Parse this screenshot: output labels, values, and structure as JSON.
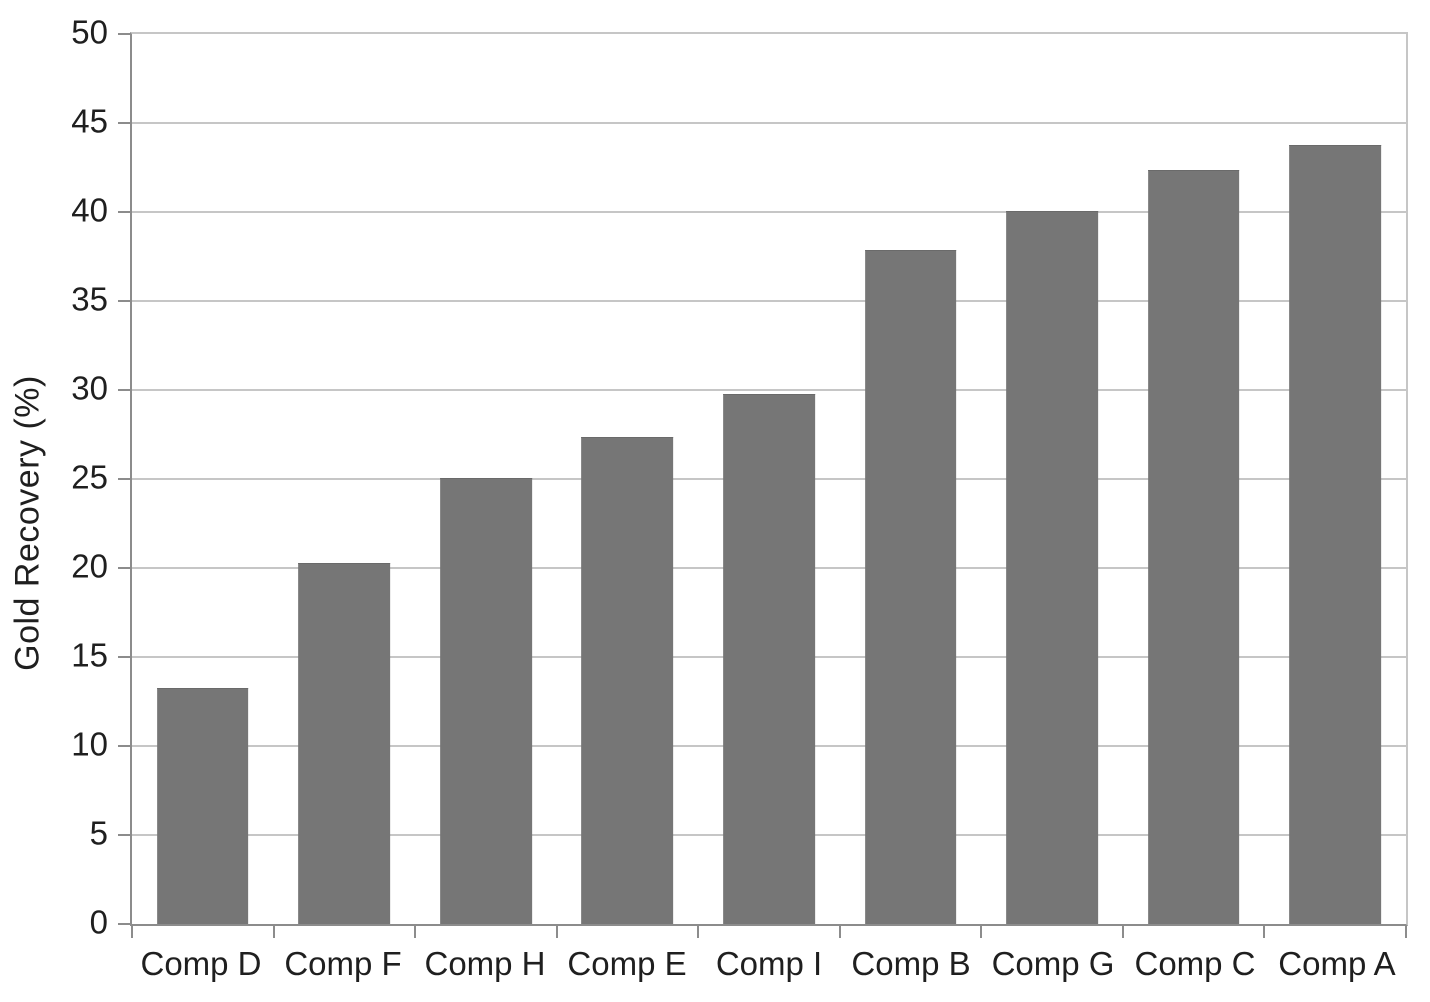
{
  "chart_data": {
    "type": "bar",
    "title": "",
    "xlabel": "",
    "ylabel": "Gold Recovery (%)",
    "categories": [
      "Comp D",
      "Comp F",
      "Comp H",
      "Comp E",
      "Comp I",
      "Comp B",
      "Comp G",
      "Comp C",
      "Comp A"
    ],
    "values": [
      13.2,
      20.2,
      25,
      27.3,
      29.7,
      37.8,
      40,
      42.3,
      43.7
    ],
    "ylim": [
      0,
      50
    ],
    "ytick_step": 5,
    "ytick_labels": [
      "0",
      "5",
      "10",
      "15",
      "20",
      "25",
      "30",
      "35",
      "40",
      "45",
      "50"
    ],
    "grid": "horizontal",
    "legend": "none",
    "bar_color": "#767676",
    "grid_color": "#c6c6c6",
    "axis_color": "#8c8c8c",
    "text_color": "#1f1f1f"
  }
}
